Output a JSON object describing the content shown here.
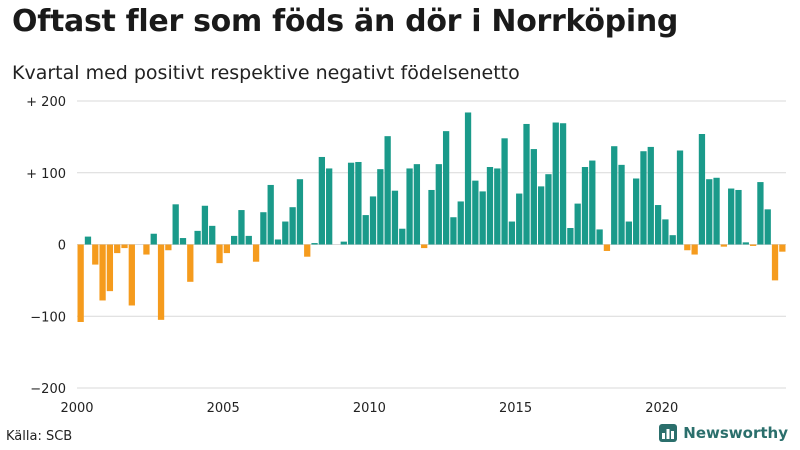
{
  "header": {
    "title": "Oftast fler som föds än dör i Norrköping",
    "subtitle": "Kvartal med positivt respektive negativt födelsenetto"
  },
  "footer": {
    "source": "Källa: SCB",
    "brand": "Newsworthy"
  },
  "colors": {
    "positive": "#1a9a8a",
    "negative": "#f59b1d",
    "grid": "#d9d9d9",
    "brand": "#2b6f6c"
  },
  "chart_data": {
    "type": "bar",
    "title": "Oftast fler som föds än dör i Norrköping",
    "subtitle": "Kvartal med positivt respektive negativt födelsenetto",
    "xlabel": "",
    "ylabel": "",
    "ylim": [
      -200,
      200
    ],
    "grid": true,
    "yticks": [
      {
        "value": 200,
        "label": "+ 200"
      },
      {
        "value": 100,
        "label": "+ 100"
      },
      {
        "value": 0,
        "label": "0"
      },
      {
        "value": -100,
        "label": "−100"
      },
      {
        "value": -200,
        "label": "−200"
      }
    ],
    "xticks": [
      {
        "value": 2000,
        "label": "2000"
      },
      {
        "value": 2005,
        "label": "2005"
      },
      {
        "value": 2010,
        "label": "2010"
      },
      {
        "value": 2015,
        "label": "2015"
      },
      {
        "value": 2020,
        "label": "2020"
      }
    ],
    "start_year": 2000,
    "periods_per_year": 4,
    "x_range": [
      2000,
      2024.25
    ],
    "values": [
      -108,
      11,
      -28,
      -78,
      -65,
      -12,
      -5,
      -85,
      0,
      -14,
      15,
      -105,
      -8,
      56,
      9,
      -52,
      19,
      54,
      26,
      -26,
      -12,
      12,
      48,
      12,
      -24,
      45,
      83,
      7,
      32,
      52,
      91,
      -17,
      2,
      122,
      106,
      0,
      4,
      114,
      115,
      41,
      67,
      105,
      151,
      75,
      22,
      106,
      112,
      -5,
      76,
      112,
      158,
      38,
      60,
      184,
      89,
      74,
      108,
      106,
      148,
      32,
      71,
      168,
      133,
      81,
      98,
      170,
      169,
      23,
      57,
      108,
      117,
      21,
      -9,
      137,
      111,
      32,
      92,
      130,
      136,
      55,
      35,
      13,
      131,
      -8,
      -14,
      154,
      91,
      93,
      -3,
      78,
      76,
      3,
      -2,
      87,
      49,
      -50,
      -10
    ]
  }
}
